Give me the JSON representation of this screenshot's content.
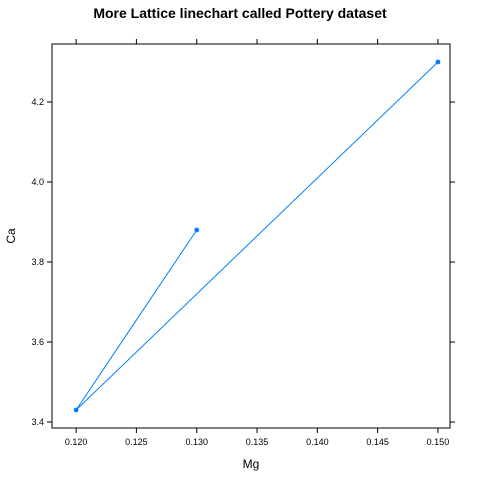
{
  "chart_data": {
    "type": "line",
    "title": "More Lattice linechart called Pottery dataset",
    "xlabel": "Mg",
    "ylabel": "Ca",
    "xlim": [
      0.118,
      0.151
    ],
    "ylim": [
      3.385,
      4.345
    ],
    "x_ticks": [
      0.12,
      0.125,
      0.13,
      0.135,
      0.14,
      0.145,
      0.15
    ],
    "x_tick_labels": [
      "0.120",
      "0.125",
      "0.130",
      "0.135",
      "0.140",
      "0.145",
      "0.150"
    ],
    "y_ticks": [
      3.4,
      3.6,
      3.8,
      4.0,
      4.2
    ],
    "y_tick_labels": [
      "3.4",
      "3.6",
      "3.8",
      "4.0",
      "4.2"
    ],
    "grid": false,
    "ticks_on_all_sides": true,
    "series": [
      {
        "color": "#0080ff",
        "points": [
          {
            "x": 0.13,
            "y": 3.88
          },
          {
            "x": 0.12,
            "y": 3.43
          },
          {
            "x": 0.15,
            "y": 4.3
          }
        ]
      }
    ]
  }
}
